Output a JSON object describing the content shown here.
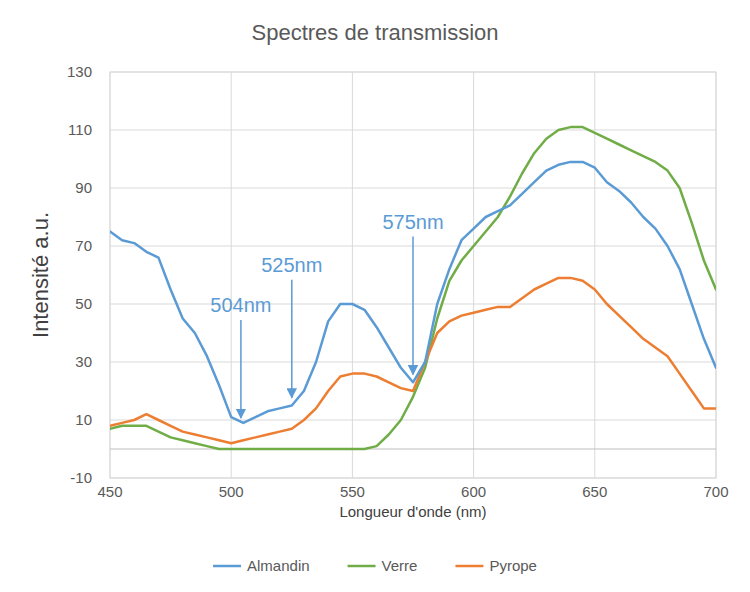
{
  "chart_data": {
    "type": "line",
    "title": "Spectres de transmission",
    "x_label": "Longueur d'onde (nm)",
    "y_label": "Intensité a.u.",
    "x": [
      450,
      455,
      460,
      465,
      470,
      475,
      480,
      485,
      490,
      495,
      500,
      505,
      510,
      515,
      520,
      525,
      530,
      535,
      540,
      545,
      550,
      555,
      560,
      565,
      570,
      575,
      580,
      585,
      590,
      595,
      600,
      605,
      610,
      615,
      620,
      625,
      630,
      635,
      640,
      645,
      650,
      655,
      660,
      665,
      670,
      675,
      680,
      685,
      690,
      695,
      700
    ],
    "series": [
      {
        "name": "Almandin",
        "color": "#5b9bd5",
        "values": [
          75,
          72,
          71,
          68,
          66,
          55,
          45,
          40,
          32,
          22,
          11,
          9,
          11,
          13,
          14,
          15,
          20,
          30,
          44,
          50,
          50,
          48,
          42,
          35,
          28,
          23,
          30,
          50,
          62,
          72,
          76,
          80,
          82,
          84,
          88,
          92,
          96,
          98,
          99,
          99,
          97,
          92,
          89,
          85,
          80,
          76,
          70,
          62,
          50,
          38,
          28
        ]
      },
      {
        "name": "Verre",
        "color": "#70ad47",
        "values": [
          7,
          8,
          8,
          8,
          6,
          4,
          3,
          2,
          1,
          0,
          0,
          0,
          0,
          0,
          0,
          0,
          0,
          0,
          0,
          0,
          0,
          0,
          1,
          5,
          10,
          18,
          28,
          45,
          58,
          65,
          70,
          75,
          80,
          87,
          95,
          102,
          107,
          110,
          111,
          111,
          109,
          107,
          105,
          103,
          101,
          99,
          96,
          90,
          78,
          65,
          55
        ]
      },
      {
        "name": "Pyrope",
        "color": "#ed7d31",
        "values": [
          8,
          9,
          10,
          12,
          10,
          8,
          6,
          5,
          4,
          3,
          2,
          3,
          4,
          5,
          6,
          7,
          10,
          14,
          20,
          25,
          26,
          26,
          25,
          23,
          21,
          20,
          30,
          40,
          44,
          46,
          47,
          48,
          49,
          49,
          52,
          55,
          57,
          59,
          59,
          58,
          55,
          50,
          46,
          42,
          38,
          35,
          32,
          26,
          20,
          14,
          14
        ]
      }
    ],
    "xlim": [
      450,
      700
    ],
    "xticks": [
      450,
      500,
      550,
      600,
      650,
      700
    ],
    "ylim": [
      -10,
      130
    ],
    "yticks": [
      -10,
      10,
      30,
      50,
      70,
      90,
      110,
      130
    ],
    "grid": true,
    "legend": "bottom",
    "annotations": [
      {
        "text": "504nm",
        "x": 504,
        "y": 10,
        "color": "#5b9bd5"
      },
      {
        "text": "525nm",
        "x": 525,
        "y": 17,
        "color": "#5b9bd5"
      },
      {
        "text": "575nm",
        "x": 575,
        "y": 25,
        "color": "#5b9bd5"
      }
    ]
  }
}
